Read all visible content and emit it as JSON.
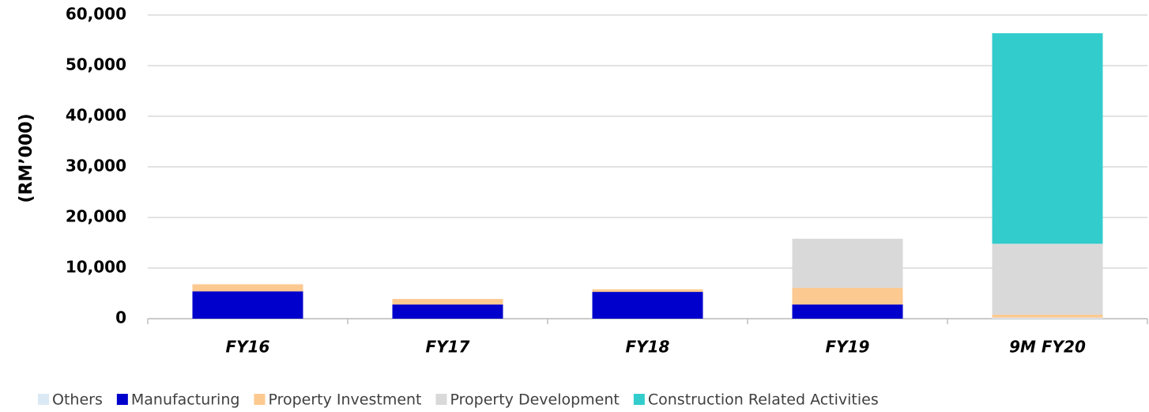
{
  "chart_data": {
    "type": "stacked_bar",
    "y_label": "(RM’000)",
    "categories": [
      "FY16",
      "FY17",
      "FY18",
      "FY19",
      "9M FY20"
    ],
    "series": [
      {
        "name": "Others",
        "color": "#dbe9f5",
        "values": [
          0,
          0,
          0,
          0,
          200
        ]
      },
      {
        "name": "Manufacturing",
        "color": "#0000cc",
        "values": [
          5400,
          2800,
          5300,
          2800,
          0
        ]
      },
      {
        "name": "Property Investment",
        "color": "#fcc990",
        "values": [
          1400,
          1100,
          500,
          3300,
          600
        ]
      },
      {
        "name": "Property Development",
        "color": "#d9d9d9",
        "values": [
          0,
          0,
          0,
          9700,
          14000
        ]
      },
      {
        "name": "Construction Related Activities",
        "color": "#33cccc",
        "values": [
          0,
          0,
          0,
          0,
          41600
        ]
      }
    ],
    "ylim": [
      0,
      60000
    ],
    "yticks": [
      0,
      {
        "value": 10000,
        "label": "10,000"
      },
      {
        "value": 20000,
        "label": "20,000"
      },
      {
        "value": 30000,
        "label": "30,000"
      },
      {
        "value": 40000,
        "label": "40,000"
      },
      {
        "value": 50000,
        "label": "50,000"
      },
      {
        "value": 60000,
        "label": "60,000"
      }
    ],
    "grid": true,
    "legend": "bottom"
  }
}
